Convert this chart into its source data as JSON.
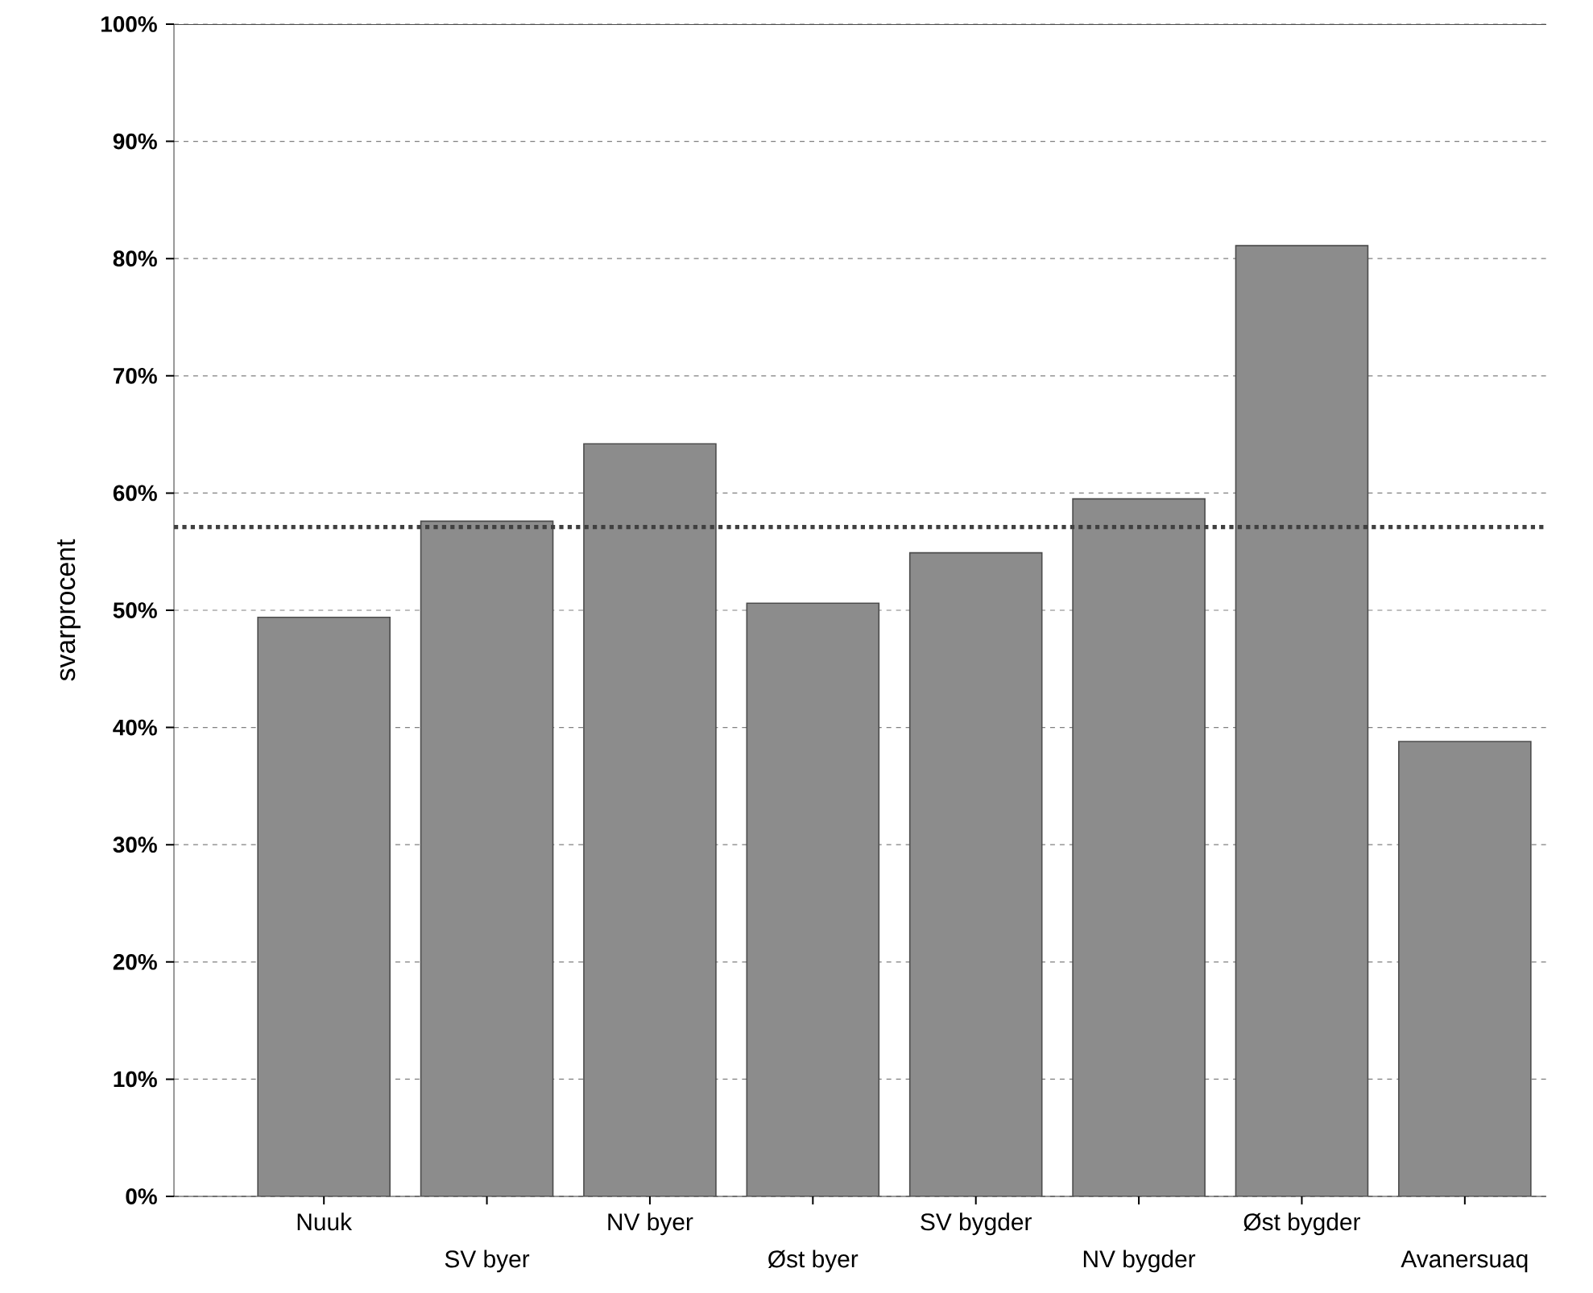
{
  "chart_data": {
    "type": "bar",
    "ylabel": "svarprocent",
    "categories": [
      "Nuuk",
      "SV byer",
      "NV byer",
      "Øst byer",
      "SV bygder",
      "NV bygder",
      "Øst bygder",
      "Avanersuaq"
    ],
    "values": [
      49.4,
      57.6,
      64.2,
      50.6,
      54.9,
      59.5,
      81.1,
      38.8
    ],
    "color": "#8c8c8c",
    "ylim": [
      0,
      100
    ],
    "yticks": [
      {
        "value": 0,
        "label": "0%"
      },
      {
        "value": 10,
        "label": "10%"
      },
      {
        "value": 20,
        "label": "20%"
      },
      {
        "value": 30,
        "label": "30%"
      },
      {
        "value": 40,
        "label": "40%"
      },
      {
        "value": 50,
        "label": "50%"
      },
      {
        "value": 60,
        "label": "60%"
      },
      {
        "value": 70,
        "label": "70%"
      },
      {
        "value": 80,
        "label": "80%"
      },
      {
        "value": 90,
        "label": "90%"
      },
      {
        "value": 100,
        "label": "100%"
      }
    ],
    "grid": "y",
    "ref_lines": [
      {
        "axis": "y",
        "value": 57.1,
        "line_style": "dotted",
        "color": "#404040"
      }
    ]
  }
}
